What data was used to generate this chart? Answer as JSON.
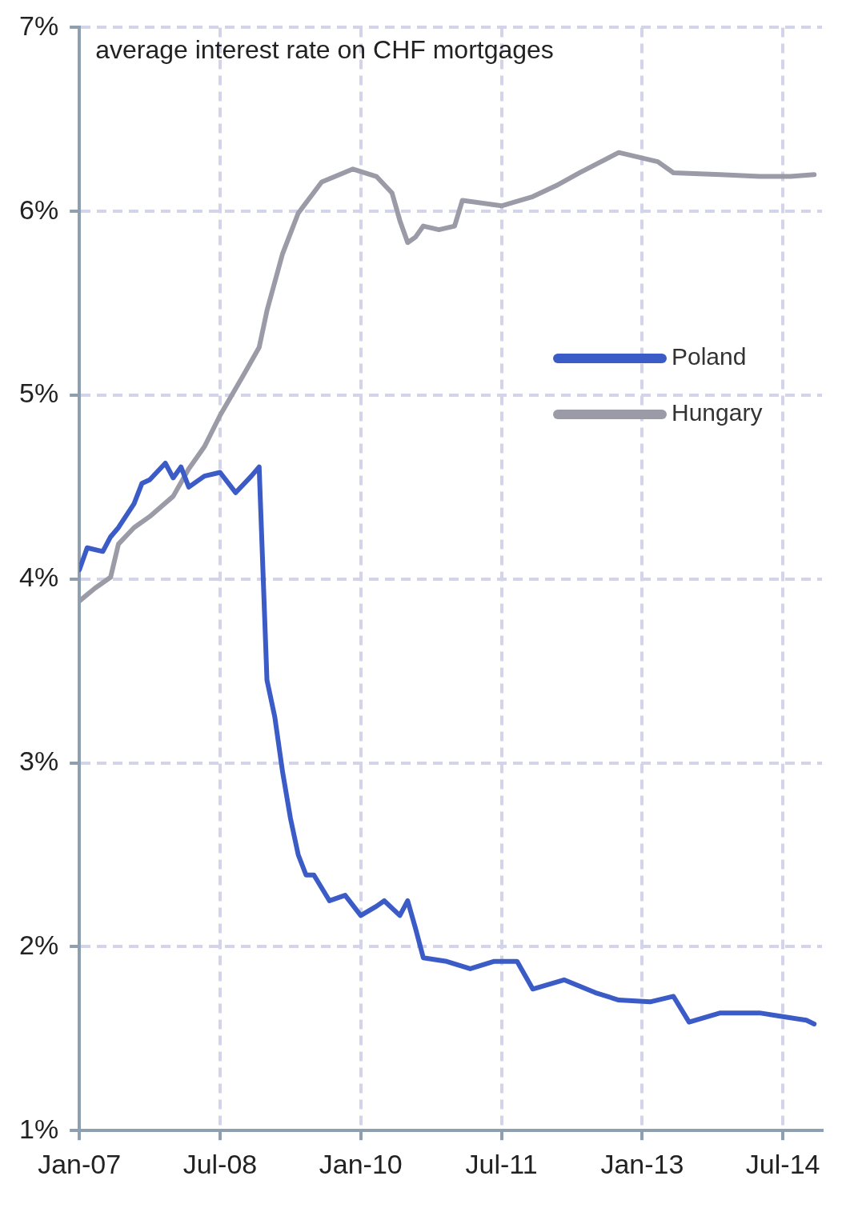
{
  "chart_data": {
    "type": "line",
    "title": "average interest rate on CHF mortgages",
    "xlim": [
      "2007-01",
      "2014-12"
    ],
    "xticks": [
      {
        "value": "2007-01",
        "label": "Jan-07"
      },
      {
        "value": "2008-07",
        "label": "Jul-08"
      },
      {
        "value": "2010-01",
        "label": "Jan-10"
      },
      {
        "value": "2011-07",
        "label": "Jul-11"
      },
      {
        "value": "2013-01",
        "label": "Jan-13"
      },
      {
        "value": "2014-07",
        "label": "Jul-14"
      }
    ],
    "ylim": [
      1,
      7
    ],
    "yticks": [
      {
        "value": 1,
        "label": "1%"
      },
      {
        "value": 2,
        "label": "2%"
      },
      {
        "value": 3,
        "label": "3%"
      },
      {
        "value": 4,
        "label": "4%"
      },
      {
        "value": 5,
        "label": "5%"
      },
      {
        "value": 6,
        "label": "6%"
      },
      {
        "value": 7,
        "label": "7%"
      }
    ],
    "grid": true,
    "legend": "top right",
    "marker": "none",
    "line_style": "solid",
    "series": [
      {
        "name": "Poland",
        "color": "#3b5bc6",
        "x": [
          "2007-01",
          "2007-02",
          "2007-04",
          "2007-05",
          "2007-06",
          "2007-08",
          "2007-09",
          "2007-10",
          "2007-12",
          "2008-01",
          "2008-02",
          "2008-03",
          "2008-05",
          "2008-07",
          "2008-09",
          "2008-11",
          "2008-12",
          "2009-01",
          "2009-02",
          "2009-03",
          "2009-04",
          "2009-05",
          "2009-06",
          "2009-07",
          "2009-09",
          "2009-11",
          "2010-01",
          "2010-03",
          "2010-04",
          "2010-06",
          "2010-07",
          "2010-08",
          "2010-09",
          "2010-12",
          "2011-03",
          "2011-06",
          "2011-09",
          "2011-11",
          "2012-03",
          "2012-07",
          "2012-10",
          "2013-02",
          "2013-05",
          "2013-07",
          "2013-11",
          "2014-04",
          "2014-07",
          "2014-10",
          "2014-11"
        ],
        "values": [
          4.05,
          4.17,
          4.15,
          4.23,
          4.28,
          4.41,
          4.52,
          4.54,
          4.63,
          4.55,
          4.61,
          4.5,
          4.56,
          4.58,
          4.47,
          4.56,
          4.61,
          3.45,
          3.25,
          2.95,
          2.7,
          2.5,
          2.39,
          2.39,
          2.25,
          2.28,
          2.17,
          2.22,
          2.25,
          2.17,
          2.25,
          2.1,
          1.94,
          1.92,
          1.88,
          1.92,
          1.92,
          1.77,
          1.82,
          1.75,
          1.71,
          1.7,
          1.73,
          1.59,
          1.64,
          1.64,
          1.62,
          1.6,
          1.58
        ]
      },
      {
        "name": "Hungary",
        "color": "#9b9ba8",
        "x": [
          "2007-01",
          "2007-03",
          "2007-05",
          "2007-06",
          "2007-08",
          "2007-10",
          "2008-01",
          "2008-03",
          "2008-05",
          "2008-07",
          "2008-10",
          "2008-12",
          "2009-01",
          "2009-03",
          "2009-05",
          "2009-08",
          "2009-12",
          "2010-03",
          "2010-05",
          "2010-06",
          "2010-07",
          "2010-08",
          "2010-09",
          "2010-11",
          "2011-01",
          "2011-02",
          "2011-07",
          "2011-11",
          "2012-02",
          "2012-05",
          "2012-10",
          "2013-03",
          "2013-05",
          "2013-11",
          "2014-04",
          "2014-08",
          "2014-11"
        ],
        "values": [
          3.88,
          3.95,
          4.01,
          4.19,
          4.28,
          4.34,
          4.45,
          4.6,
          4.72,
          4.89,
          5.11,
          5.26,
          5.46,
          5.77,
          5.99,
          6.16,
          6.23,
          6.19,
          6.1,
          5.95,
          5.83,
          5.86,
          5.92,
          5.9,
          5.92,
          6.06,
          6.03,
          6.08,
          6.14,
          6.21,
          6.32,
          6.27,
          6.21,
          6.2,
          6.19,
          6.19,
          6.2
        ]
      }
    ]
  }
}
